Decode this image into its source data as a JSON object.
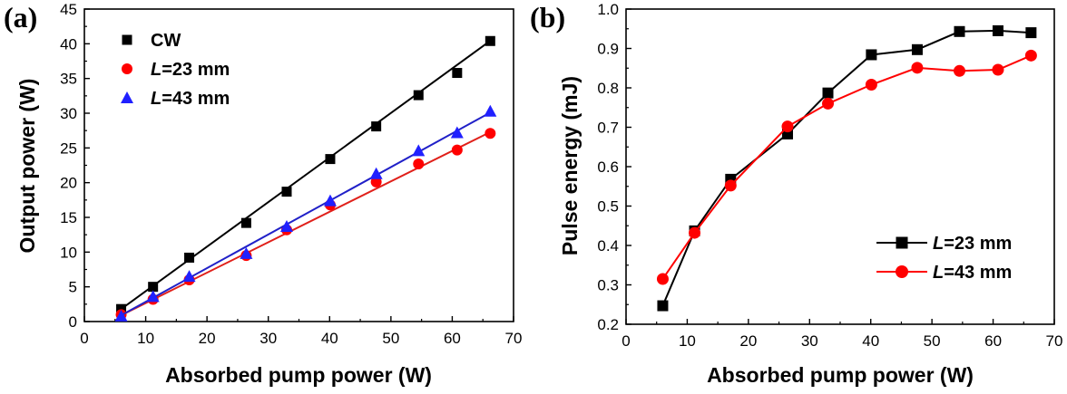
{
  "chart_data": [
    {
      "panel_label": "(a)",
      "type": "scatter",
      "xlabel": "Absorbed pump power (W)",
      "ylabel": "Output power (W)",
      "xlim": [
        0,
        70
      ],
      "ylim": [
        0,
        45
      ],
      "xticks": [
        "0",
        "10",
        "20",
        "30",
        "40",
        "50",
        "60",
        "70"
      ],
      "yticks": [
        "0",
        "5",
        "10",
        "15",
        "20",
        "25",
        "30",
        "35",
        "40",
        "45"
      ],
      "grid": false,
      "legend_position": "top-left",
      "series": [
        {
          "name": "CW",
          "legend_text": "CW",
          "legend_italic": "",
          "marker": "square",
          "color": "#000000",
          "line_color": "#000000",
          "fit_line": [
            [
              6,
              1.8
            ],
            [
              66,
              40.3
            ]
          ],
          "x": [
            6.0,
            11.2,
            17.1,
            26.4,
            33.0,
            40.1,
            47.6,
            54.5,
            60.8,
            66.2
          ],
          "y": [
            1.8,
            5.0,
            9.2,
            14.2,
            18.7,
            23.4,
            28.1,
            32.6,
            35.8,
            40.4
          ]
        },
        {
          "name": "L=23 mm",
          "legend_text": "=23 mm",
          "legend_italic": "L",
          "marker": "circle",
          "color": "#ff0000",
          "line_color": "#e0201a",
          "fit_line": [
            [
              6,
              0.9
            ],
            [
              66,
              27.2
            ]
          ],
          "x": [
            6.0,
            11.2,
            17.1,
            26.4,
            33.0,
            40.1,
            47.6,
            54.5,
            60.8,
            66.2
          ],
          "y": [
            1.0,
            3.2,
            6.0,
            9.5,
            13.2,
            16.8,
            20.1,
            22.7,
            24.7,
            27.1
          ]
        },
        {
          "name": "L=43 mm",
          "legend_text": "=43 mm",
          "legend_italic": "L",
          "marker": "triangle",
          "color": "#2020ff",
          "line_color": "#2020c8",
          "fit_line": [
            [
              6,
              0.9
            ],
            [
              66,
              30.0
            ]
          ],
          "x": [
            6.0,
            11.2,
            17.1,
            26.4,
            33.0,
            40.1,
            47.6,
            54.5,
            60.8,
            66.2
          ],
          "y": [
            0.8,
            3.6,
            6.5,
            9.8,
            13.7,
            17.4,
            21.3,
            24.6,
            27.2,
            30.3
          ]
        }
      ]
    },
    {
      "panel_label": "(b)",
      "type": "line",
      "xlabel": "Absorbed pump power (W)",
      "ylabel": "Pulse energy (mJ)",
      "xlim": [
        0,
        70
      ],
      "ylim": [
        0.2,
        1.0
      ],
      "xticks": [
        "0",
        "10",
        "20",
        "30",
        "40",
        "50",
        "60",
        "70"
      ],
      "yticks": [
        "0.2",
        "0.3",
        "0.4",
        "0.5",
        "0.6",
        "0.7",
        "0.8",
        "0.9",
        "1.0"
      ],
      "grid": false,
      "legend_position": "bottom-right",
      "series": [
        {
          "name": "L=23 mm",
          "legend_text": "=23 mm",
          "legend_italic": "L",
          "marker": "square",
          "color": "#000000",
          "line_color": "#000000",
          "x": [
            6.0,
            11.2,
            17.1,
            26.4,
            33.0,
            40.1,
            47.6,
            54.5,
            60.8,
            66.2
          ],
          "y": [
            0.247,
            0.437,
            0.568,
            0.683,
            0.787,
            0.884,
            0.897,
            0.943,
            0.945,
            0.94
          ]
        },
        {
          "name": "L=43 mm",
          "legend_text": "=43 mm",
          "legend_italic": "L",
          "marker": "circle",
          "color": "#ff0000",
          "line_color": "#ff0000",
          "x": [
            6.0,
            11.2,
            17.1,
            26.4,
            33.0,
            40.1,
            47.6,
            54.5,
            60.8,
            66.2
          ],
          "y": [
            0.315,
            0.432,
            0.552,
            0.702,
            0.76,
            0.808,
            0.851,
            0.843,
            0.846,
            0.882
          ]
        }
      ]
    }
  ]
}
